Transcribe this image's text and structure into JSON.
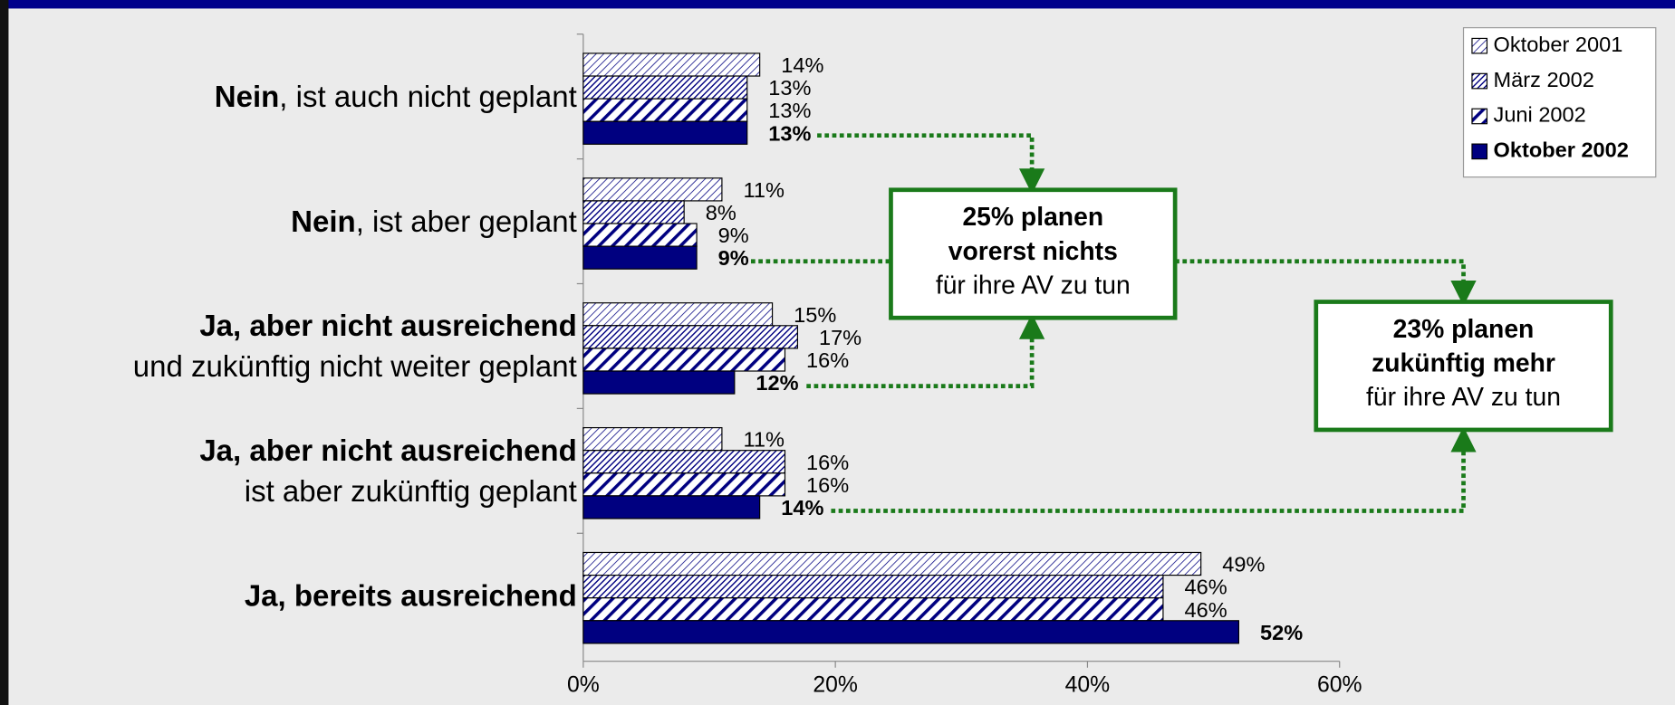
{
  "chart_data": {
    "type": "hbar",
    "categories": [
      {
        "bold": "Nein",
        "text": ", ist auch nicht geplant"
      },
      {
        "bold": "Nein",
        "text": ", ist aber geplant"
      },
      {
        "bold": "Ja, aber nicht ausreichend",
        "text": "und zukünftig nicht weiter geplant"
      },
      {
        "bold": "Ja, aber nicht ausreichend",
        "text": "ist aber zukünftig geplant"
      },
      {
        "bold": "Ja, bereits ausreichend"
      }
    ],
    "series": [
      {
        "name": "Oktober 2001",
        "color": "#000080",
        "pattern": "hatch-light",
        "values": [
          14,
          11,
          15,
          11,
          49
        ],
        "value_labels": [
          "14%",
          "11%",
          "15%",
          "11%",
          "49%"
        ]
      },
      {
        "name": "März 2002",
        "color": "#000080",
        "pattern": "hatch-dense",
        "values": [
          13,
          8,
          17,
          16,
          46
        ],
        "value_labels": [
          "13%",
          "8%",
          "17%",
          "16%",
          "46%"
        ]
      },
      {
        "name": "Juni 2002",
        "color": "#000080",
        "pattern": "stripes",
        "values": [
          13,
          9,
          16,
          16,
          46
        ],
        "value_labels": [
          "13%",
          "9%",
          "16%",
          "16%",
          "46%"
        ]
      },
      {
        "name": "Oktober 2002",
        "color": "#000080",
        "pattern": "solid",
        "bold": true,
        "values": [
          13,
          9,
          12,
          14,
          52
        ],
        "value_labels": [
          "13%",
          "9%",
          "12%",
          "14%",
          "52%"
        ]
      }
    ],
    "xlim": [
      0,
      60
    ],
    "xticks": [
      {
        "value": 0,
        "label": "0%"
      },
      {
        "value": 20,
        "label": "20%"
      },
      {
        "value": 40,
        "label": "40%"
      },
      {
        "value": 60,
        "label": "60%"
      }
    ],
    "legend": "top-right",
    "annotations": [
      {
        "lines": [
          "25% planen",
          "vorerst nichts",
          "für ihre AV zu tun"
        ],
        "bold": [
          true,
          true,
          false
        ]
      },
      {
        "lines": [
          "23% planen",
          "zukünftig mehr",
          "für ihre AV zu tun"
        ],
        "bold": [
          true,
          true,
          false
        ]
      }
    ]
  }
}
